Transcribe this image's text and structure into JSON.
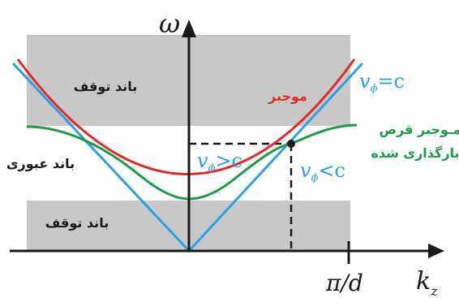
{
  "axes": {
    "y_label": "ω",
    "x_label": "k",
    "x_label_sub": "z",
    "x_tick": "π/d"
  },
  "labels": {
    "stop_band_top": "باند توقف",
    "stop_band_bottom": "باند توقف",
    "pass_band": "باند عبوری",
    "waveguide": "موجبر",
    "disc_loaded_line1": "مـوجبر قرص",
    "disc_loaded_line2": "بارگذاری شده"
  },
  "light_line": {
    "v": "v",
    "sub": "ϕ",
    "rest": "=c"
  },
  "phase_fast": {
    "v": "v",
    "sub": "ϕ",
    "rest": ">c"
  },
  "phase_slow": {
    "v": "v",
    "sub": "ϕ",
    "rest": "<c"
  },
  "colors": {
    "stop_band_fill": "#c8c8c8",
    "light_line": "#2e9fe0",
    "waveguide": "#e02b2b",
    "disc_loaded": "#1f9a4a",
    "axis": "#1a1a1a"
  }
}
